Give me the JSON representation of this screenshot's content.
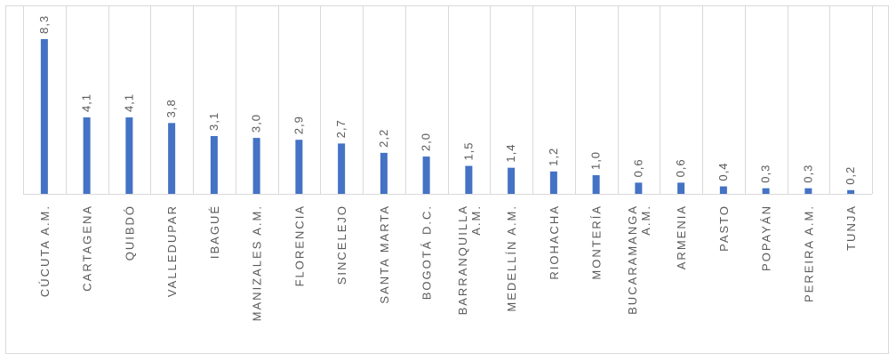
{
  "chart_data": {
    "type": "bar",
    "title": "",
    "xlabel": "",
    "ylabel": "",
    "ylim": [
      0,
      8.3
    ],
    "grid": "vertical-separators",
    "legend": "none",
    "bar_color": "#4472c4",
    "grid_color": "#d9d9d9",
    "text_color": "#595959",
    "categories": [
      [
        "CÚCUTA A.M."
      ],
      [
        "CARTAGENA"
      ],
      [
        "QUIBDÓ"
      ],
      [
        "VALLEDUPAR"
      ],
      [
        "IBAGUÉ"
      ],
      [
        "MANIZALES A.M."
      ],
      [
        "FLORENCIA"
      ],
      [
        "SINCELEJO"
      ],
      [
        "SANTA MARTA"
      ],
      [
        "BOGOTÁ D.C."
      ],
      [
        "BARRANQUILLA",
        "A.M."
      ],
      [
        "MEDELLÍN A.M."
      ],
      [
        "RIOHACHA"
      ],
      [
        "MONTERÍA"
      ],
      [
        "BUCARAMANGA",
        "A.M."
      ],
      [
        "ARMENIA"
      ],
      [
        "PASTO"
      ],
      [
        "POPAYÁN"
      ],
      [
        "PEREIRA A.M."
      ],
      [
        "TUNJA"
      ]
    ],
    "values": [
      8.3,
      4.1,
      4.1,
      3.8,
      3.1,
      3.0,
      2.9,
      2.7,
      2.2,
      2.0,
      1.5,
      1.4,
      1.2,
      1.0,
      0.6,
      0.6,
      0.4,
      0.3,
      0.3,
      0.2
    ],
    "value_labels": [
      "8,3",
      "4,1",
      "4,1",
      "3,8",
      "3,1",
      "3,0",
      "2,9",
      "2,7",
      "2,2",
      "2,0",
      "1,5",
      "1,4",
      "1,2",
      "1,0",
      "0,6",
      "0,6",
      "0,4",
      "0,3",
      "0,3",
      "0,2"
    ]
  }
}
